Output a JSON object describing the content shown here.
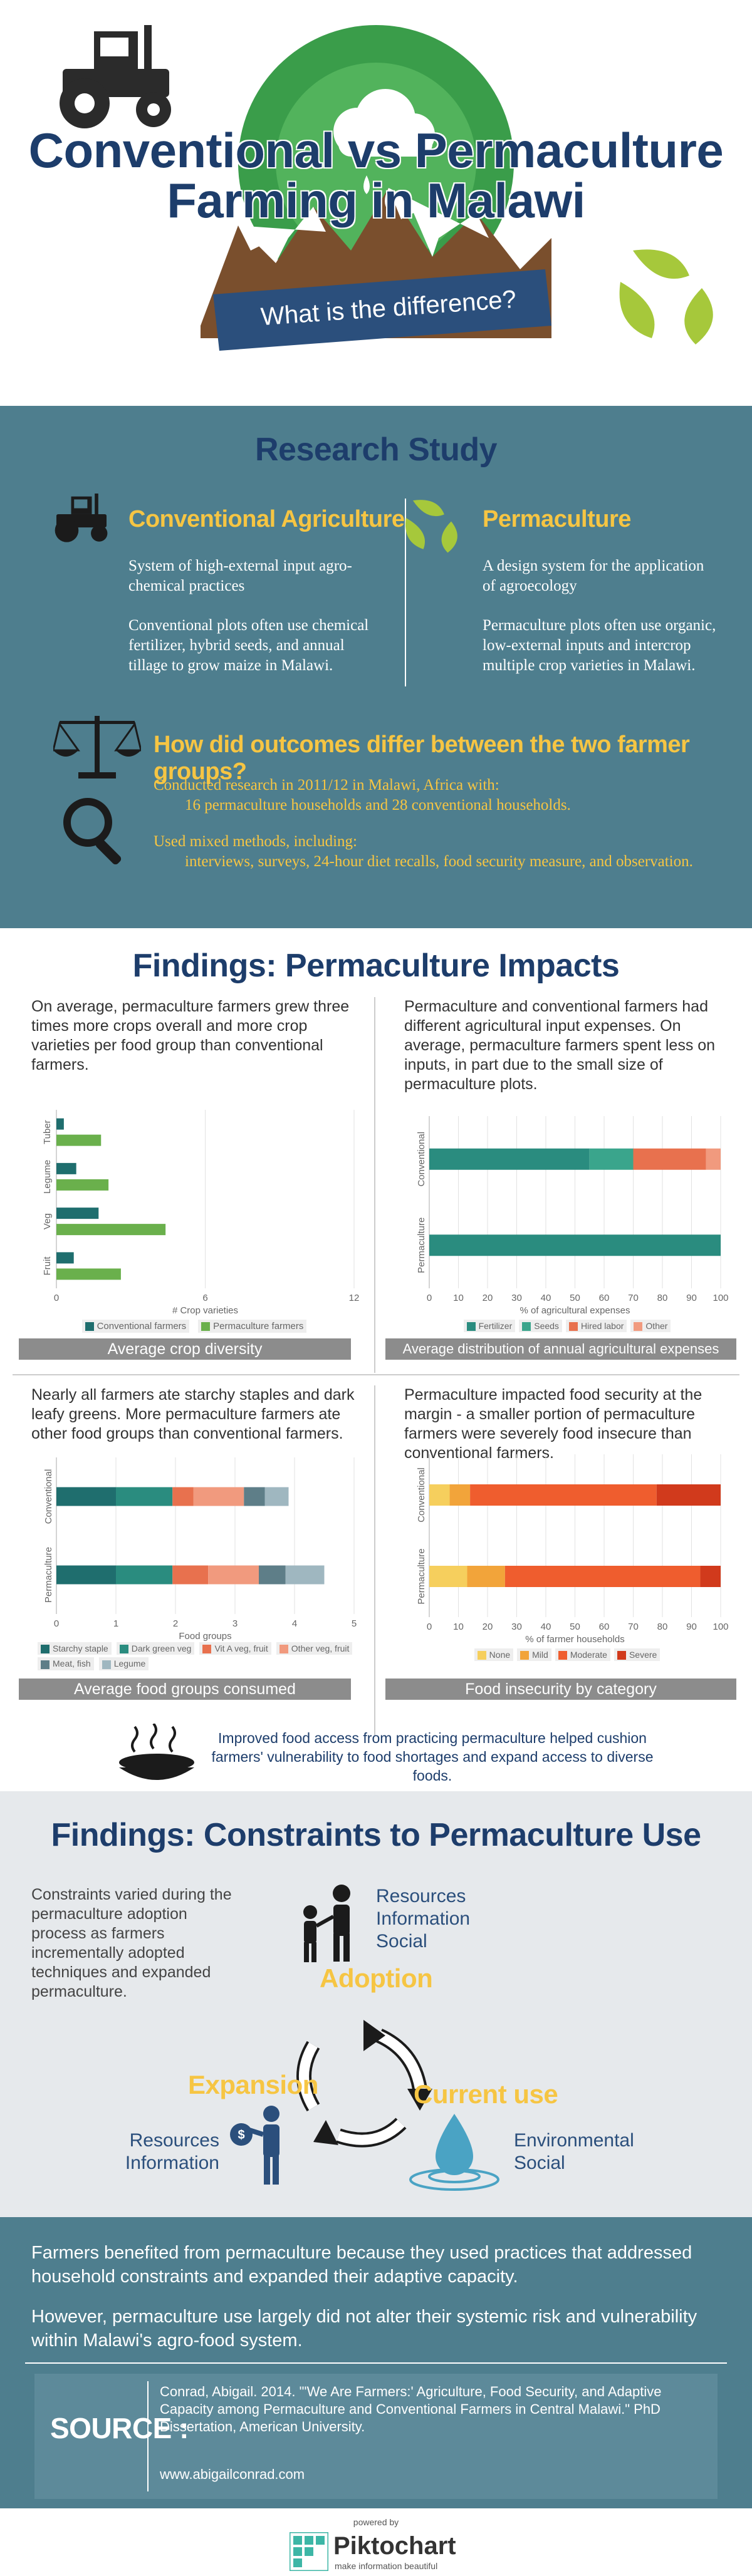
{
  "header": {
    "title_line1": "Conventional vs Permaculture",
    "title_line2": "Farming in Malawi",
    "subtitle": "What is the difference?"
  },
  "research": {
    "heading": "Research Study",
    "conventional": {
      "title": "Conventional Agriculture",
      "p1": "System of high-external input agro-chemical practices",
      "p2": "Conventional plots often use chemical fertilizer, hybrid seeds, and annual tillage to grow maize in Malawi."
    },
    "permaculture": {
      "title": "Permaculture",
      "p1": "A design system for the application of agroecology",
      "p2": "Permaculture plots often use organic, low-external inputs and intercrop multiple crop varieties in Malawi."
    },
    "question": "How did outcomes differ between the two farmer groups?",
    "method1": "Conducted research in 2011/12 in Malawi, Africa with:",
    "method1b": "16 permaculture households and 28 conventional households.",
    "method2": "Used mixed methods, including:",
    "method2b": "interviews, surveys, 24-hour diet recalls, food security measure, and observation."
  },
  "findings1": {
    "heading": "Findings: Permaculture Impacts",
    "text1": "On average, permaculture farmers grew three times more crops overall and more crop varieties per food group than conventional farmers.",
    "text2": "Permaculture and conventional farmers had different agricultural input expenses. On average, permaculture farmers spent less on inputs, in part due to the small size of permaculture plots.",
    "text3": "Nearly all farmers ate starchy staples and dark leafy greens. More permaculture farmers ate other food groups than conventional farmers.",
    "text4": "Permaculture impacted food security at the margin - a smaller portion of permaculture farmers were severely food insecure than conventional farmers.",
    "caption1": "Average crop diversity",
    "caption2": "Average distribution of annual agricultural expenses",
    "caption3": "Average food groups consumed",
    "caption4": "Food insecurity by category",
    "summary": "Improved food access from practicing permaculture helped cushion farmers' vulnerability to food shortages and expand access to diverse foods."
  },
  "findings2": {
    "heading": "Findings: Constraints to Permaculture Use",
    "text": "Constraints varied during the permaculture adoption process as farmers incrementally adopted techniques and expanded permaculture.",
    "adoption": "Adoption",
    "adoption_constraints": [
      "Resources",
      "Information",
      "Social"
    ],
    "expansion": "Expansion",
    "expansion_constraints": [
      "Resources",
      "Information"
    ],
    "current": "Current use",
    "current_constraints": [
      "Environmental",
      "Social"
    ]
  },
  "conclusion": {
    "p1": "Farmers benefited from permaculture because they used practices that addressed household constraints and expanded their adaptive capacity.",
    "p2": "However, permaculture use largely did not alter their systemic risk and vulnerability within Malawi's agro-food system."
  },
  "source": {
    "label": "SOURCE :",
    "citation": "Conrad, Abigail. 2014. \"'We Are Farmers:' Agriculture, Food Security, and Adaptive Capacity among Permaculture and Conventional Farmers in Central Malawi.\" PhD Dissertation, American University.",
    "url": "www.abigailconrad.com"
  },
  "footer": {
    "powered": "powered by",
    "brand": "Piktochart",
    "tagline": "make information beautiful"
  },
  "colors": {
    "teal": "#4e7e8e",
    "gold": "#f6c543",
    "navy": "#1d3d6b",
    "green": "#3ea55a"
  },
  "chart_data": [
    {
      "type": "bar",
      "orientation": "horizontal",
      "categories": [
        "Tuber",
        "Legume",
        "Veg",
        "Fruit"
      ],
      "series": [
        {
          "name": "Conventional farmers",
          "color": "#1f6e6e",
          "values": [
            0.3,
            0.8,
            1.7,
            0.7
          ]
        },
        {
          "name": "Permaculture farmers",
          "color": "#6ab04c",
          "values": [
            1.8,
            2.1,
            4.4,
            2.6
          ]
        }
      ],
      "xlabel": "# Crop varieties",
      "xlim": [
        0,
        12
      ],
      "xticks": [
        0,
        6,
        12
      ]
    },
    {
      "type": "bar",
      "orientation": "horizontal",
      "stacked": true,
      "categories": [
        "Conventional",
        "Permaculture"
      ],
      "series": [
        {
          "name": "Fertilizer",
          "color": "#2a8c7f",
          "values": [
            55,
            100
          ]
        },
        {
          "name": "Seeds",
          "color": "#3aa58c",
          "values": [
            15,
            0
          ]
        },
        {
          "name": "Hired labor",
          "color": "#e8714e",
          "values": [
            25,
            0
          ]
        },
        {
          "name": "Other",
          "color": "#f19a7e",
          "values": [
            5,
            0
          ]
        }
      ],
      "xlabel": "% of agricultural expenses",
      "xlim": [
        0,
        100
      ],
      "xticks": [
        0,
        10,
        20,
        30,
        40,
        50,
        60,
        70,
        80,
        90,
        100
      ]
    },
    {
      "type": "bar",
      "orientation": "horizontal",
      "stacked": true,
      "categories": [
        "Conventional",
        "Permaculture"
      ],
      "series": [
        {
          "name": "Starchy staple",
          "color": "#1f6e6e",
          "values": [
            1,
            1
          ]
        },
        {
          "name": "Dark green veg",
          "color": "#2a8c7f",
          "values": [
            0.95,
            0.95
          ]
        },
        {
          "name": "Vit A veg, fruit",
          "color": "#e8714e",
          "values": [
            0.35,
            0.6
          ]
        },
        {
          "name": "Other veg, fruit",
          "color": "#f19a7e",
          "values": [
            0.85,
            0.85
          ]
        },
        {
          "name": "Meat, fish",
          "color": "#5e7e88",
          "values": [
            0.35,
            0.45
          ]
        },
        {
          "name": "Legume",
          "color": "#9fb7c0",
          "values": [
            0.4,
            0.65
          ]
        }
      ],
      "xlabel": "Food groups",
      "xlim": [
        0,
        5
      ],
      "xticks": [
        0,
        1,
        2,
        3,
        4,
        5
      ]
    },
    {
      "type": "bar",
      "orientation": "horizontal",
      "stacked": true,
      "categories": [
        "Conventional",
        "Permaculture"
      ],
      "series": [
        {
          "name": "None",
          "color": "#f6cf5d",
          "values": [
            7,
            13
          ]
        },
        {
          "name": "Mild",
          "color": "#f2a43a",
          "values": [
            7,
            13
          ]
        },
        {
          "name": "Moderate",
          "color": "#ef5d2e",
          "values": [
            64,
            67
          ]
        },
        {
          "name": "Severe",
          "color": "#d13a1c",
          "values": [
            22,
            7
          ]
        }
      ],
      "xlabel": "% of farmer households",
      "xlim": [
        0,
        100
      ],
      "xticks": [
        0,
        10,
        20,
        30,
        40,
        50,
        60,
        70,
        80,
        90,
        100
      ]
    }
  ]
}
